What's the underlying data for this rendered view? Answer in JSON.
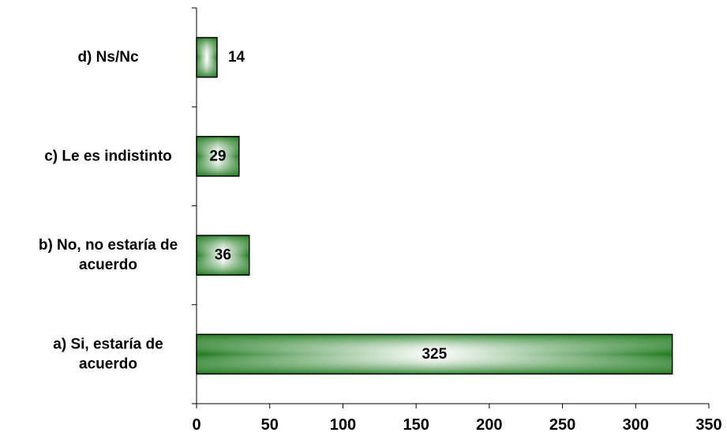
{
  "chart_data": {
    "type": "bar",
    "orientation": "horizontal",
    "categories": [
      [
        "d) Ns/Nc"
      ],
      [
        "c) Le es indistinto"
      ],
      [
        "b) No, no estaría de",
        "acuerdo"
      ],
      [
        "a) Si, estaría de",
        "acuerdo"
      ]
    ],
    "values": [
      14,
      29,
      36,
      325
    ],
    "data_labels": [
      "14",
      "29",
      "36",
      "325"
    ],
    "xlim": [
      0,
      350
    ],
    "x_ticks": [
      0,
      50,
      100,
      150,
      200,
      250,
      300,
      350
    ],
    "grid": false,
    "legend": "none",
    "bar_color": "#1f7a1f",
    "bar_highlight": "#ffffff"
  }
}
